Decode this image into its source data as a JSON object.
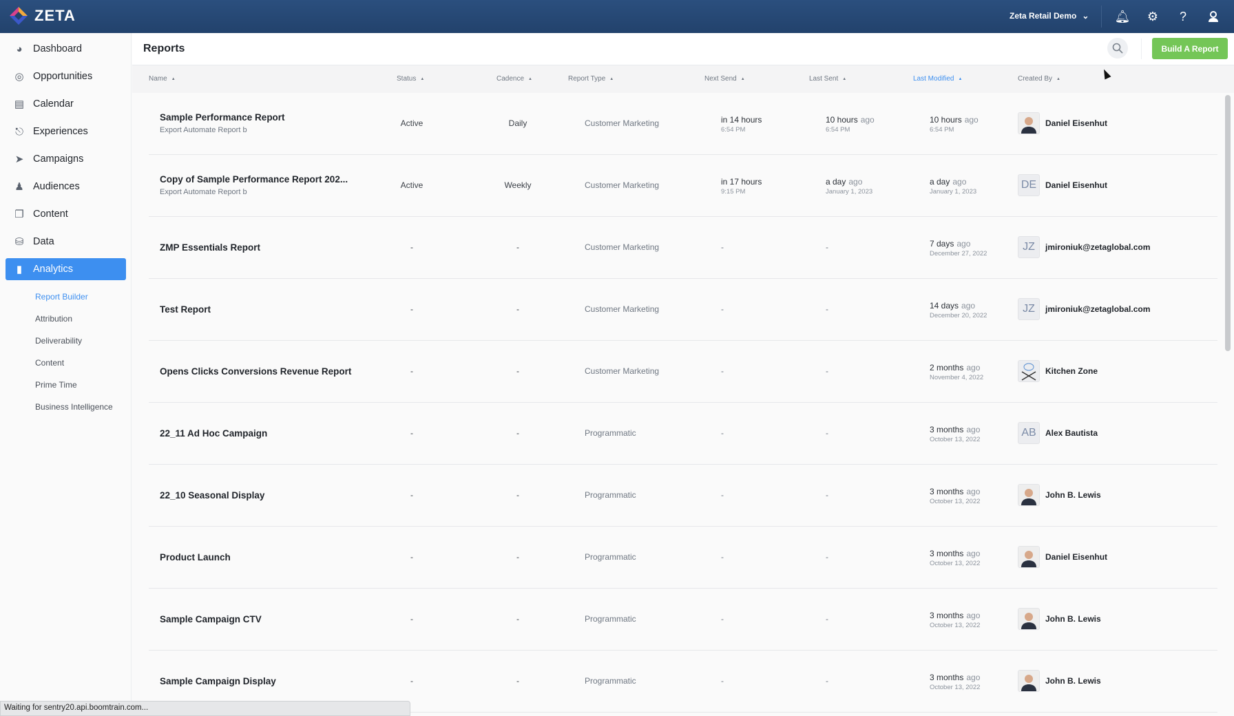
{
  "app": {
    "logo_text": "ZETA",
    "account": "Zeta Retail Demo"
  },
  "colors": {
    "topbar": "#22426c",
    "accent": "#3d8ff0",
    "primary_button": "#74c657"
  },
  "sidebar": {
    "items": [
      {
        "label": "Dashboard",
        "icon": "gauge-icon"
      },
      {
        "label": "Opportunities",
        "icon": "target-icon"
      },
      {
        "label": "Calendar",
        "icon": "calendar-icon"
      },
      {
        "label": "Experiences",
        "icon": "hierarchy-icon"
      },
      {
        "label": "Campaigns",
        "icon": "paper-plane-icon"
      },
      {
        "label": "Audiences",
        "icon": "users-icon"
      },
      {
        "label": "Content",
        "icon": "files-icon"
      },
      {
        "label": "Data",
        "icon": "database-icon"
      },
      {
        "label": "Analytics",
        "icon": "bar-chart-icon",
        "active": true
      }
    ],
    "subitems": [
      {
        "label": "Report Builder",
        "active": true
      },
      {
        "label": "Attribution"
      },
      {
        "label": "Deliverability"
      },
      {
        "label": "Content"
      },
      {
        "label": "Prime Time"
      },
      {
        "label": "Business Intelligence"
      }
    ]
  },
  "page": {
    "title": "Reports",
    "build_button": "Build A Report"
  },
  "table": {
    "columns": [
      "Name",
      "Status",
      "Cadence",
      "Report Type",
      "Next Send",
      "Last Sent",
      "Last Modified",
      "Created By"
    ],
    "sorted_column": "Last Modified",
    "rows": [
      {
        "name": "Sample Performance Report",
        "sub": "Export Automate Report b",
        "status": "Active",
        "cadence": "Daily",
        "type": "Customer Marketing",
        "next": {
          "rel": "in 14 hours",
          "abs": "6:54 PM"
        },
        "sent": {
          "rel": "10 hours",
          "ago": "ago",
          "abs": "6:54 PM"
        },
        "mod": {
          "rel": "10 hours",
          "ago": "ago",
          "abs": "6:54 PM"
        },
        "creator": "Daniel Eisenhut",
        "avatar": "photo"
      },
      {
        "name": "Copy of Sample Performance Report 202...",
        "sub": "Export Automate Report b",
        "status": "Active",
        "cadence": "Weekly",
        "type": "Customer Marketing",
        "next": {
          "rel": "in 17 hours",
          "abs": "9:15 PM"
        },
        "sent": {
          "rel": "a day",
          "ago": "ago",
          "abs": "January 1, 2023"
        },
        "mod": {
          "rel": "a day",
          "ago": "ago",
          "abs": "January 1, 2023"
        },
        "creator": "Daniel Eisenhut",
        "avatar": "DE"
      },
      {
        "name": "ZMP Essentials Report",
        "status": "-",
        "cadence": "-",
        "type": "Customer Marketing",
        "next_dash": "-",
        "sent_dash": "-",
        "mod": {
          "rel": "7 days",
          "ago": "ago",
          "abs": "December 27, 2022"
        },
        "creator": "jmironiuk@zetaglobal.com",
        "avatar": "JZ"
      },
      {
        "name": "Test Report",
        "status": "-",
        "cadence": "-",
        "type": "Customer Marketing",
        "next_dash": "-",
        "sent_dash": "-",
        "mod": {
          "rel": "14 days",
          "ago": "ago",
          "abs": "December 20, 2022"
        },
        "creator": "jmironiuk@zetaglobal.com",
        "avatar": "JZ"
      },
      {
        "name": "Opens Clicks Conversions Revenue Report",
        "status": "-",
        "cadence": "-",
        "type": "Customer Marketing",
        "next_dash": "-",
        "sent_dash": "-",
        "mod": {
          "rel": "2 months",
          "ago": "ago",
          "abs": "November 4, 2022"
        },
        "creator": "Kitchen Zone",
        "avatar": "chef-logo"
      },
      {
        "name": "22_11 Ad Hoc Campaign",
        "status": "-",
        "cadence": "-",
        "type": "Programmatic",
        "next_dash": "-",
        "sent_dash": "-",
        "mod": {
          "rel": "3 months",
          "ago": "ago",
          "abs": "October 13, 2022"
        },
        "creator": "Alex Bautista",
        "avatar": "AB"
      },
      {
        "name": "22_10 Seasonal Display",
        "status": "-",
        "cadence": "-",
        "type": "Programmatic",
        "next_dash": "-",
        "sent_dash": "-",
        "mod": {
          "rel": "3 months",
          "ago": "ago",
          "abs": "October 13, 2022"
        },
        "creator": "John B. Lewis",
        "avatar": "photo"
      },
      {
        "name": "Product Launch",
        "status": "-",
        "cadence": "-",
        "type": "Programmatic",
        "next_dash": "-",
        "sent_dash": "-",
        "mod": {
          "rel": "3 months",
          "ago": "ago",
          "abs": "October 13, 2022"
        },
        "creator": "Daniel Eisenhut",
        "avatar": "photo"
      },
      {
        "name": "Sample Campaign CTV",
        "status": "-",
        "cadence": "-",
        "type": "Programmatic",
        "next_dash": "-",
        "sent_dash": "-",
        "mod": {
          "rel": "3 months",
          "ago": "ago",
          "abs": "October 13, 2022"
        },
        "creator": "John B. Lewis",
        "avatar": "photo"
      },
      {
        "name": "Sample Campaign Display",
        "status": "-",
        "cadence": "-",
        "type": "Programmatic",
        "next_dash": "-",
        "sent_dash": "-",
        "mod": {
          "rel": "3 months",
          "ago": "ago",
          "abs": "October 13, 2022"
        },
        "creator": "John B. Lewis",
        "avatar": "photo"
      }
    ]
  },
  "statusbar": "Waiting for sentry20.api.boomtrain.com..."
}
